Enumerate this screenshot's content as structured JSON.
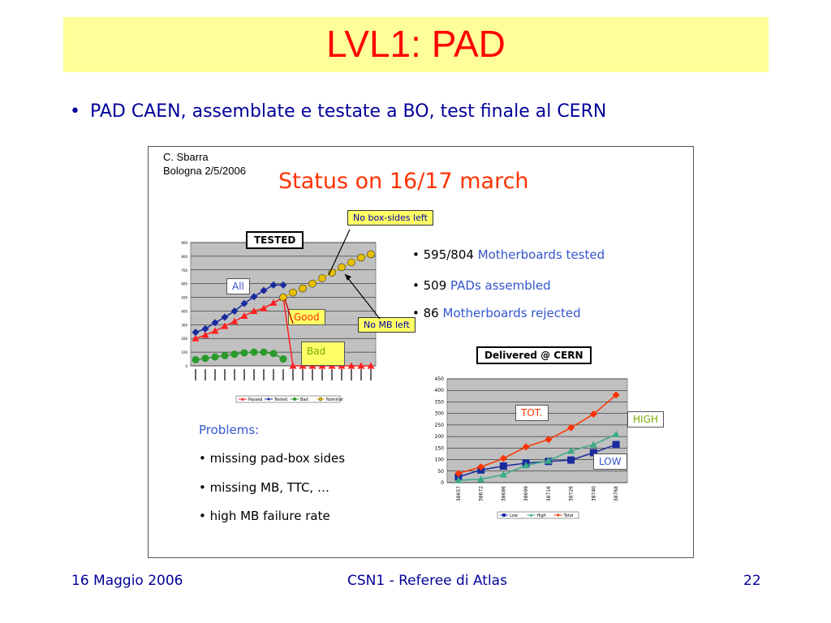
{
  "slide": {
    "title": "LVL1: PAD",
    "bullet": "PAD CAEN, assemblate e testate a BO, test finale al CERN",
    "author_line1": "C. Sbarra",
    "author_line2": "Bologna 2/5/2006",
    "status_title": "Status on 16/17 march",
    "callouts": {
      "no_box_sides": "No box-sides left",
      "no_mb_left": "No MB left",
      "all": "All",
      "good": "Good",
      "bad": "Bad",
      "tested": "TESTED",
      "delivered": "Delivered @ CERN",
      "tot": "TOT.",
      "high": "HIGH",
      "low": "LOW"
    },
    "stats": [
      {
        "num": "595/804",
        "text": "Motherboards tested"
      },
      {
        "num": "509",
        "text": "PADs assembled"
      },
      {
        "num": "86",
        "text": "Motherboards rejected"
      }
    ],
    "problems_title": "Problems:",
    "problems": [
      "missing pad-box sides",
      "missing MB, TTC, …",
      "high MB failure rate"
    ],
    "footer_left": "16 Maggio 2006",
    "footer_center": "CSN1 - Referee di Atlas",
    "footer_right": "22"
  },
  "chart_data": [
    {
      "type": "line",
      "title": "TESTED",
      "ylim": [
        0,
        900
      ],
      "yticks": [
        0,
        100,
        200,
        300,
        400,
        500,
        600,
        700,
        800,
        900
      ],
      "series": [
        {
          "name": "Passed",
          "color": "#ff2020",
          "marker": "triangle",
          "values": [
            200,
            225,
            255,
            290,
            325,
            365,
            400,
            420,
            460,
            500,
            0,
            0,
            0,
            0,
            0,
            0,
            0,
            0,
            0
          ]
        },
        {
          "name": "Tested",
          "color": "#1a2b9e",
          "marker": "diamond",
          "values": [
            245,
            270,
            315,
            355,
            400,
            455,
            505,
            550,
            590,
            590,
            null,
            null,
            null,
            null,
            null,
            null,
            null,
            null,
            null
          ]
        },
        {
          "name": "Bad",
          "color": "#2a9a2a",
          "marker": "circle",
          "values": [
            45,
            55,
            65,
            75,
            85,
            95,
            100,
            100,
            90,
            50,
            null,
            null,
            null,
            null,
            null,
            null,
            null,
            null,
            null
          ]
        },
        {
          "name": "Nominal",
          "color": "#e8c000",
          "marker": "circle",
          "values": [
            null,
            null,
            null,
            null,
            null,
            null,
            null,
            null,
            null,
            500,
            535,
            565,
            600,
            640,
            680,
            720,
            755,
            790,
            815
          ]
        }
      ]
    },
    {
      "type": "line",
      "title": "Delivered @ CERN",
      "categories": [
        "38657",
        "38672",
        "38686",
        "38699",
        "38716",
        "38726",
        "38740",
        "38768"
      ],
      "ylim": [
        0,
        450
      ],
      "yticks": [
        0,
        50,
        100,
        150,
        200,
        250,
        300,
        350,
        400,
        450
      ],
      "series": [
        {
          "name": "Low",
          "color": "#1a2b9e",
          "marker": "square",
          "values": [
            25,
            55,
            72,
            85,
            92,
            98,
            130,
            165
          ]
        },
        {
          "name": "High",
          "color": "#3aaa88",
          "marker": "triangle",
          "values": [
            10,
            15,
            35,
            75,
            95,
            138,
            165,
            210
          ]
        },
        {
          "name": "Total",
          "color": "#ff3300",
          "marker": "diamond",
          "values": [
            40,
            68,
            105,
            155,
            187,
            238,
            297,
            380
          ]
        }
      ]
    }
  ]
}
